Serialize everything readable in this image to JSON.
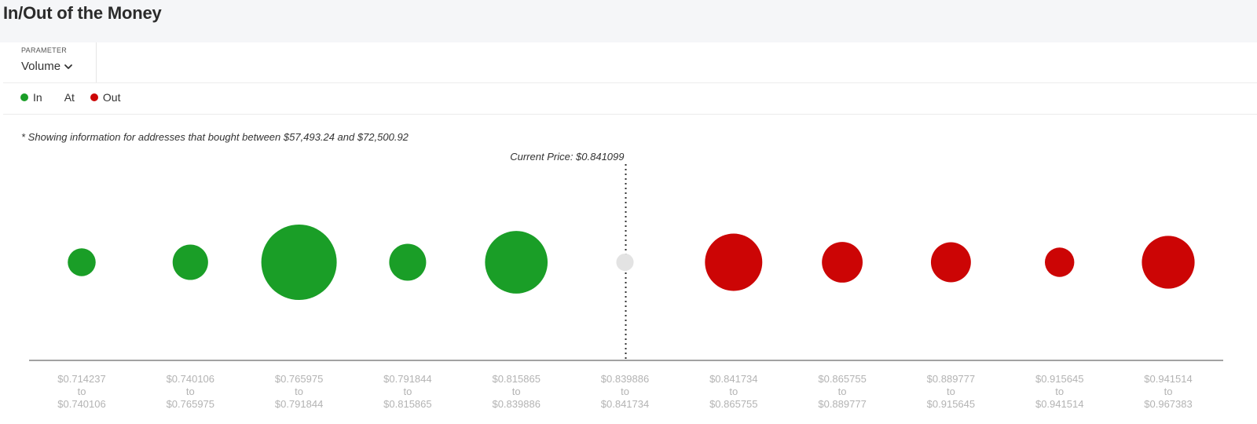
{
  "header": {
    "title": "In/Out of the Money"
  },
  "parameter": {
    "label": "PARAMETER",
    "value": "Volume"
  },
  "legend": [
    {
      "label": "In",
      "color": "#1a9e27"
    },
    {
      "label": "At",
      "color": "#dcdcdc"
    },
    {
      "label": "Out",
      "color": "#cc0505"
    }
  ],
  "note": "* Showing information for addresses that bought between $57,493.24 and $72,500.92",
  "chart_data": {
    "type": "scatter",
    "title": "",
    "current_price_label": "Current Price: $0.841099",
    "current_price": 0.841099,
    "bubble_metric": "Volume",
    "bubble_size_scale": "relative radius (largest = 1.0)",
    "colors": {
      "In": "#1a9e27",
      "At": "#e3e3e3",
      "Out": "#cc0505"
    },
    "buckets": [
      {
        "from": "$0.714237",
        "to": "$0.740106",
        "status": "In",
        "relative_size": 0.37
      },
      {
        "from": "$0.740106",
        "to": "$0.765975",
        "status": "In",
        "relative_size": 0.47
      },
      {
        "from": "$0.765975",
        "to": "$0.791844",
        "status": "In",
        "relative_size": 1.0
      },
      {
        "from": "$0.791844",
        "to": "$0.815865",
        "status": "In",
        "relative_size": 0.49
      },
      {
        "from": "$0.815865",
        "to": "$0.839886",
        "status": "In",
        "relative_size": 0.83
      },
      {
        "from": "$0.839886",
        "to": "$0.841734",
        "status": "At",
        "relative_size": 0.23
      },
      {
        "from": "$0.841734",
        "to": "$0.865755",
        "status": "Out",
        "relative_size": 0.76
      },
      {
        "from": "$0.865755",
        "to": "$0.889777",
        "status": "Out",
        "relative_size": 0.54
      },
      {
        "from": "$0.889777",
        "to": "$0.915645",
        "status": "Out",
        "relative_size": 0.53
      },
      {
        "from": "$0.915645",
        "to": "$0.941514",
        "status": "Out",
        "relative_size": 0.39
      },
      {
        "from": "$0.941514",
        "to": "$0.967383",
        "status": "Out",
        "relative_size": 0.7
      }
    ],
    "range_joiner": "to"
  }
}
